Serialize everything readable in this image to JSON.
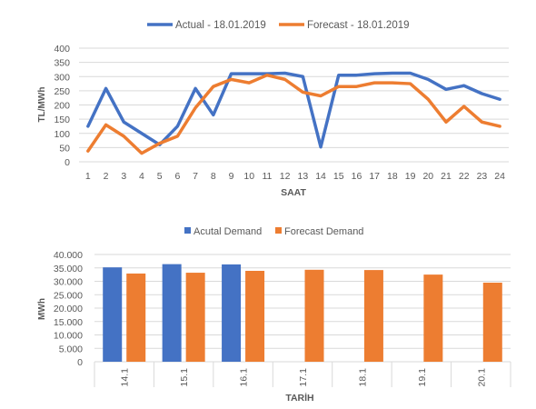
{
  "colors": {
    "actual": "#4472C4",
    "forecast": "#ED7D31",
    "grid": "#D9D9D9",
    "text": "#595959"
  },
  "chart_data": [
    {
      "type": "line",
      "xlabel": "SAAT",
      "ylabel": "TL/MWh",
      "ylim": [
        0,
        400
      ],
      "yticks": [
        "0",
        "50",
        "100",
        "150",
        "200",
        "250",
        "300",
        "350",
        "400"
      ],
      "grid": true,
      "legend_position": "top",
      "x": [
        "1",
        "2",
        "3",
        "4",
        "5",
        "6",
        "7",
        "8",
        "9",
        "10",
        "11",
        "12",
        "13",
        "14",
        "15",
        "16",
        "17",
        "18",
        "19",
        "20",
        "21",
        "22",
        "23",
        "24"
      ],
      "series": [
        {
          "name": "Actual - 18.01.2019",
          "color": "#4472C4",
          "values": [
            125,
            258,
            140,
            100,
            60,
            125,
            258,
            165,
            310,
            310,
            310,
            312,
            300,
            52,
            305,
            305,
            310,
            312,
            312,
            290,
            255,
            268,
            240,
            220
          ]
        },
        {
          "name": "Forecast - 18.01.2019",
          "color": "#ED7D31",
          "values": [
            38,
            130,
            90,
            30,
            65,
            90,
            190,
            265,
            290,
            278,
            305,
            290,
            245,
            232,
            265,
            265,
            278,
            278,
            275,
            220,
            140,
            195,
            140,
            125
          ]
        }
      ]
    },
    {
      "type": "bar",
      "xlabel": "TARİH",
      "ylabel": "MWh",
      "ylim": [
        0,
        40000
      ],
      "yticks": [
        "0",
        "5.000",
        "10.000",
        "15.000",
        "20.000",
        "25.000",
        "30.000",
        "35.000",
        "40.000"
      ],
      "grid": true,
      "legend_position": "top",
      "categories": [
        "14.1",
        "15.1",
        "16.1",
        "17.1",
        "18.1",
        "19.1",
        "20.1"
      ],
      "series": [
        {
          "name": "Acutal Demand",
          "color": "#4472C4",
          "values": [
            35200,
            36400,
            36300,
            null,
            null,
            null,
            null
          ]
        },
        {
          "name": "Forecast Demand",
          "color": "#ED7D31",
          "values": [
            32900,
            33200,
            33900,
            34300,
            34200,
            32500,
            29500
          ]
        }
      ]
    }
  ]
}
